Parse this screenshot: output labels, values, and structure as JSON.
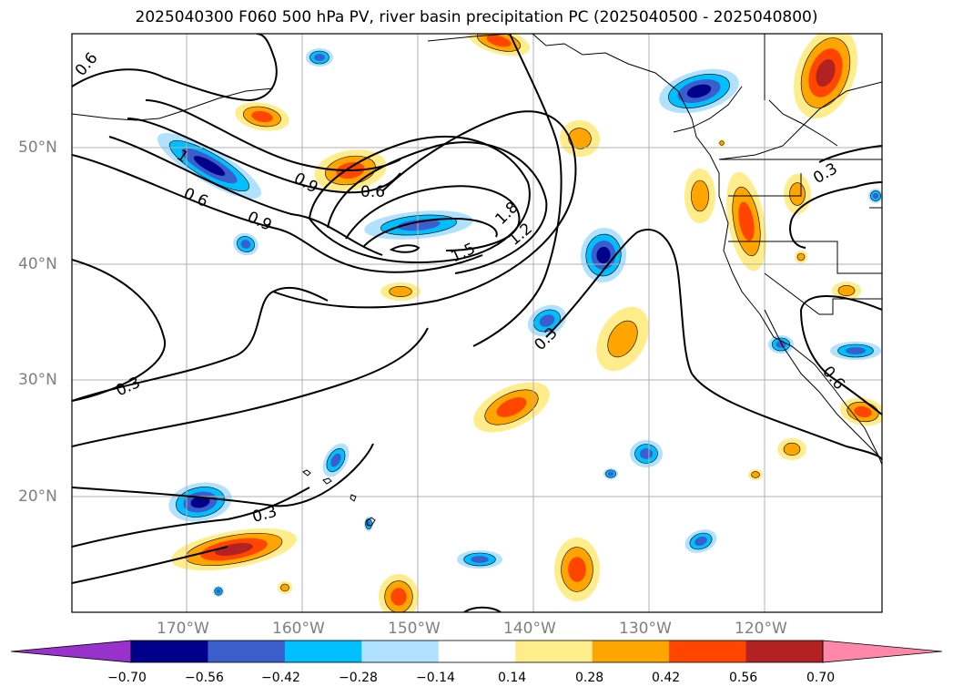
{
  "title": "2025040300 F060 500 hPa PV, river basin precipitation PC (2025040500 - 2025040800)",
  "lat_labels": [
    "50°N",
    "40°N",
    "30°N",
    "20°N"
  ],
  "lon_labels": [
    "170°W",
    "160°W",
    "150°W",
    "140°W",
    "130°W",
    "120°W"
  ],
  "contour_labels": [
    "0.6",
    "1",
    "0.9",
    "0.6",
    "0.6",
    "0.9",
    "1.5",
    "1.8",
    "1.2",
    "0.3",
    "0.3",
    "0.3",
    "0.3",
    "0.6"
  ],
  "colorbar": {
    "ticks": [
      "−0.70",
      "−0.56",
      "−0.42",
      "−0.28",
      "−0.14",
      "0.14",
      "0.28",
      "0.42",
      "0.56",
      "0.70"
    ],
    "colors": [
      "#9932cc",
      "#00008b",
      "#3a5fcd",
      "#00bfff",
      "#b0e2ff",
      "#ffffff",
      "#ffec8b",
      "#ffa500",
      "#ff4500",
      "#b22222",
      "#ff88aa"
    ]
  },
  "colors": {
    "positive_high": "#b22222",
    "positive_mid": "#ff4500",
    "positive_low": "#ffa500",
    "positive_faint": "#ffec8b",
    "negative_high": "#00008b",
    "negative_mid": "#3a5fcd",
    "negative_low": "#00bfff",
    "negative_faint": "#b0e2ff",
    "grid": "#b0b0b0",
    "contour": "#000000"
  }
}
